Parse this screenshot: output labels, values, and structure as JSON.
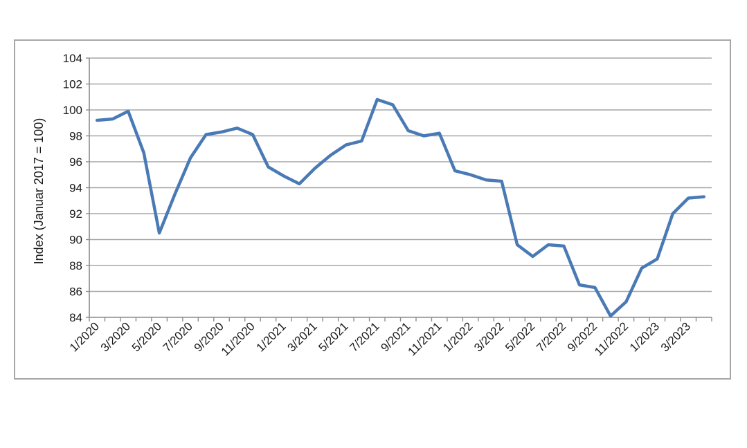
{
  "chart_data": {
    "type": "line",
    "title": "",
    "xlabel": "",
    "ylabel": "Index (Januar 2017 = 100)",
    "ylim": [
      84,
      104
    ],
    "yticks": [
      84,
      86,
      88,
      90,
      92,
      94,
      96,
      98,
      100,
      102,
      104
    ],
    "grid": "horizontal",
    "legend": "none",
    "colors": {
      "line": "#4a7ab5",
      "grid": "#a6a6a6",
      "axis": "#8c8c8c"
    },
    "x": [
      "1/2020",
      "2/2020",
      "3/2020",
      "4/2020",
      "5/2020",
      "6/2020",
      "7/2020",
      "8/2020",
      "9/2020",
      "10/2020",
      "11/2020",
      "12/2020",
      "1/2021",
      "2/2021",
      "3/2021",
      "4/2021",
      "5/2021",
      "6/2021",
      "7/2021",
      "8/2021",
      "9/2021",
      "10/2021",
      "11/2021",
      "12/2021",
      "1/2022",
      "2/2022",
      "3/2022",
      "4/2022",
      "5/2022",
      "6/2022",
      "7/2022",
      "8/2022",
      "9/2022",
      "10/2022",
      "11/2022",
      "12/2022",
      "1/2023",
      "2/2023",
      "3/2023",
      "4/2023"
    ],
    "tick_labels": [
      "1/2020",
      "3/2020",
      "5/2020",
      "7/2020",
      "9/2020",
      "11/2020",
      "1/2021",
      "3/2021",
      "5/2021",
      "7/2021",
      "9/2021",
      "11/2021",
      "1/2022",
      "3/2022",
      "5/2022",
      "7/2022",
      "9/2022",
      "11/2022",
      "1/2023",
      "3/2023"
    ],
    "series": [
      {
        "values": [
          99.2,
          99.3,
          99.9,
          96.7,
          90.5,
          93.5,
          96.3,
          98.1,
          98.3,
          98.6,
          98.1,
          95.6,
          94.9,
          94.3,
          95.5,
          96.5,
          97.3,
          97.6,
          100.8,
          100.4,
          98.4,
          98.0,
          98.2,
          95.3,
          95.0,
          94.6,
          94.5,
          89.6,
          88.7,
          89.6,
          89.5,
          86.5,
          86.3,
          84.1,
          85.2,
          87.8,
          88.5,
          92.0,
          93.2,
          93.3
        ]
      }
    ]
  }
}
